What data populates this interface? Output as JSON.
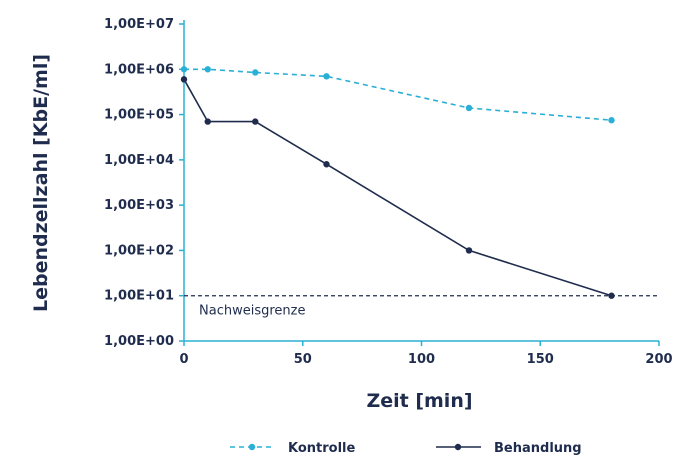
{
  "chart_data": {
    "type": "line",
    "ylabel": "Lebendzellzahl [KbE/ml]",
    "xlabel": "Zeit [min]",
    "y_scale": "log",
    "ylim": [
      1,
      10000000
    ],
    "xlim": [
      0,
      200
    ],
    "y_ticks": [
      "1,00E+00",
      "1,00E+01",
      "1,00E+02",
      "1,00E+03",
      "1,00E+04",
      "1,00E+05",
      "1,00E+06",
      "1,00E+07"
    ],
    "x_ticks": [
      "0",
      "50",
      "100",
      "150",
      "200"
    ],
    "grid": false,
    "legend_position": "bottom",
    "series": [
      {
        "name": "Kontrolle",
        "color": "#2ab0d6",
        "style": "dashed",
        "x": [
          0,
          10,
          30,
          60,
          120,
          180
        ],
        "y": [
          1000000,
          1000000,
          850000,
          700000,
          140000,
          75000
        ]
      },
      {
        "name": "Behandlung",
        "color": "#1f2c4d",
        "style": "solid",
        "x": [
          0,
          10,
          30,
          60,
          120,
          180
        ],
        "y": [
          600000,
          70000,
          70000,
          8000,
          100,
          10
        ]
      }
    ],
    "annotations": [
      {
        "text": "Nachweisgrenze",
        "y": 10,
        "style": "dashed",
        "color": "#1f2c4d"
      }
    ]
  }
}
